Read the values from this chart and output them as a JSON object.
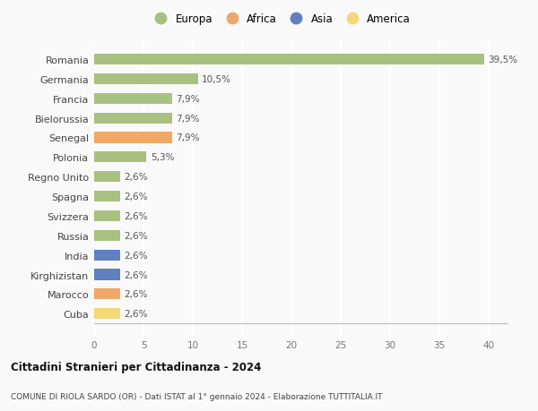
{
  "categories": [
    "Cuba",
    "Marocco",
    "Kirghizistan",
    "India",
    "Russia",
    "Svizzera",
    "Spagna",
    "Regno Unito",
    "Polonia",
    "Senegal",
    "Bielorussia",
    "Francia",
    "Germania",
    "Romania"
  ],
  "values": [
    2.6,
    2.6,
    2.6,
    2.6,
    2.6,
    2.6,
    2.6,
    2.6,
    5.3,
    7.9,
    7.9,
    7.9,
    10.5,
    39.5
  ],
  "labels": [
    "2,6%",
    "2,6%",
    "2,6%",
    "2,6%",
    "2,6%",
    "2,6%",
    "2,6%",
    "2,6%",
    "5,3%",
    "7,9%",
    "7,9%",
    "7,9%",
    "10,5%",
    "39,5%"
  ],
  "colors": [
    "#f5d778",
    "#f0a868",
    "#6080c0",
    "#6080c0",
    "#a8c080",
    "#a8c080",
    "#a8c080",
    "#a8c080",
    "#a8c080",
    "#f0a868",
    "#a8c080",
    "#a8c080",
    "#a8c080",
    "#a8c080"
  ],
  "legend_labels": [
    "Europa",
    "Africa",
    "Asia",
    "America"
  ],
  "legend_colors": [
    "#a8c080",
    "#f0a868",
    "#6080c0",
    "#f5d778"
  ],
  "title": "Cittadini Stranieri per Cittadinanza - 2024",
  "subtitle": "COMUNE DI RIOLA SARDO (OR) - Dati ISTAT al 1° gennaio 2024 - Elaborazione TUTTITALIA.IT",
  "xlim": [
    0,
    42
  ],
  "xticks": [
    0,
    5,
    10,
    15,
    20,
    25,
    30,
    35,
    40
  ],
  "bg_color": "#f9f9f9",
  "grid_color": "#ffffff",
  "bar_height": 0.55
}
